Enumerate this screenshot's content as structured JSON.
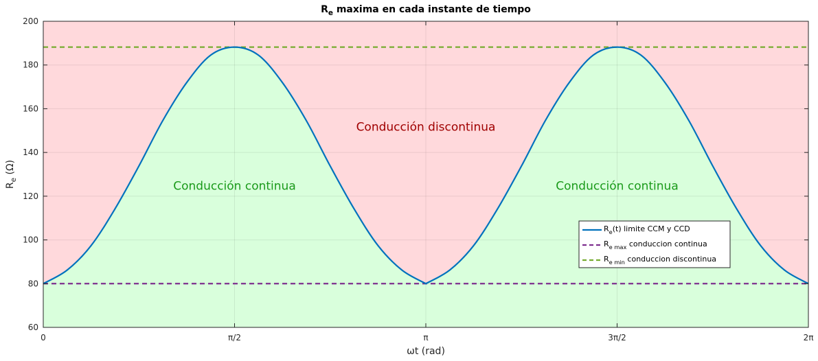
{
  "chart_data": {
    "type": "line",
    "title": "R",
    "title_sub": "e",
    "title_rest": " maxima en cada instante de tiempo",
    "xlabel": "ωt (rad)",
    "ylabel": "R",
    "ylabel_sub": "e",
    "ylabel_unit": " (Ω)",
    "xlim": [
      0,
      6.283185307
    ],
    "ylim": [
      60,
      200
    ],
    "x_ticks": [
      {
        "value": 0,
        "label": "0"
      },
      {
        "value": 1.570796327,
        "label": "π/2"
      },
      {
        "value": 3.141592654,
        "label": "π"
      },
      {
        "value": 4.71238898,
        "label": "3π/2"
      },
      {
        "value": 6.283185307,
        "label": "2π"
      }
    ],
    "y_ticks": [
      {
        "value": 60,
        "label": "60"
      },
      {
        "value": 80,
        "label": "80"
      },
      {
        "value": 100,
        "label": "100"
      },
      {
        "value": 120,
        "label": "120"
      },
      {
        "value": 140,
        "label": "140"
      },
      {
        "value": 160,
        "label": "160"
      },
      {
        "value": 180,
        "label": "180"
      },
      {
        "value": 200,
        "label": "200"
      }
    ],
    "grid": true,
    "legend_position": "bottom-right",
    "series": [
      {
        "name": "R",
        "name_sub": "e",
        "name_rest": "(t) limite CCM y CCD",
        "kind": "curve",
        "color": "#0072bd",
        "dash": "solid",
        "x": [
          0,
          0.1963,
          0.3927,
          0.589,
          0.7854,
          0.9817,
          1.1781,
          1.3744,
          1.5708,
          1.7671,
          1.9635,
          2.1598,
          2.3562,
          2.5525,
          2.7489,
          2.9452,
          3.1416,
          3.3379,
          3.5343,
          3.7306,
          3.927,
          4.1233,
          4.3197,
          4.516,
          4.7124,
          4.9087,
          5.1051,
          5.3014,
          5.4978,
          5.6941,
          5.8905,
          6.0868,
          6.2832
        ],
        "y": [
          80,
          86.2,
          97.4,
          114.2,
          133.8,
          154.6,
          172.0,
          184.5,
          188.2,
          184.5,
          172.0,
          154.6,
          133.8,
          114.2,
          97.4,
          86.2,
          80,
          86.2,
          97.4,
          114.2,
          133.8,
          154.6,
          172.0,
          184.5,
          188.2,
          184.5,
          172.0,
          154.6,
          133.8,
          114.2,
          97.4,
          86.2,
          80
        ]
      },
      {
        "name": "R",
        "name_sub": "e max",
        "name_rest": " conduccion continua",
        "kind": "hline",
        "color": "#7e2f8e",
        "dash": "dashed",
        "y": 80
      },
      {
        "name": "R",
        "name_sub": "e min",
        "name_rest": " conduccion discontinua",
        "kind": "hline",
        "color": "#77ac30",
        "dash": "dashed",
        "y": 188.2
      }
    ],
    "regions": {
      "above_color": "#ffd9dc",
      "below_color": "#d9ffdc"
    },
    "annotations": [
      {
        "text": "Conducción discontinua",
        "x": 3.141592654,
        "y": 150,
        "color": "#a00000"
      },
      {
        "text": "Conducción continua",
        "x": 1.570796327,
        "y": 123,
        "color": "#1a9a1a"
      },
      {
        "text": "Conducción continua",
        "x": 4.71238898,
        "y": 123,
        "color": "#1a9a1a"
      }
    ]
  }
}
